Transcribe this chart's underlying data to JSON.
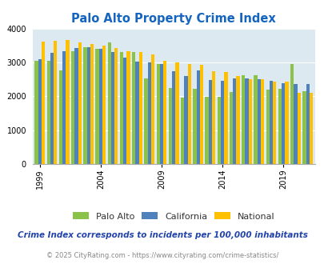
{
  "title": "Palo Alto Property Crime Index",
  "subtitle": "Crime Index corresponds to incidents per 100,000 inhabitants",
  "footer": "© 2025 CityRating.com - https://www.cityrating.com/crime-statistics/",
  "years": [
    1999,
    2000,
    2001,
    2002,
    2003,
    2004,
    2005,
    2006,
    2007,
    2008,
    2009,
    2010,
    2011,
    2012,
    2013,
    2014,
    2015,
    2016,
    2017,
    2018,
    2019,
    2020,
    2021
  ],
  "palo_alto": [
    3050,
    3050,
    2780,
    3350,
    3470,
    3420,
    3600,
    3310,
    3310,
    2540,
    2970,
    2250,
    1960,
    2220,
    1980,
    1980,
    2120,
    2640,
    2640,
    2200,
    2220,
    2970,
    2150
  ],
  "california": [
    3100,
    3300,
    3350,
    3430,
    3450,
    3420,
    3320,
    3160,
    3040,
    3000,
    2950,
    2740,
    2600,
    2760,
    2490,
    2460,
    2530,
    2530,
    2520,
    2460,
    2380,
    2370,
    2360
  ],
  "national": [
    3630,
    3660,
    3680,
    3610,
    3550,
    3510,
    3440,
    3350,
    3310,
    3250,
    3050,
    3000,
    2960,
    2940,
    2740,
    2720,
    2610,
    2510,
    2510,
    2450,
    2450,
    2100,
    2100
  ],
  "color_palo_alto": "#8BC34A",
  "color_california": "#4F81BD",
  "color_national": "#FFC000",
  "bg_color": "#DCE9F0",
  "title_color": "#1565C0",
  "subtitle_color": "#2244AA",
  "footer_color": "#888888",
  "ylim": [
    0,
    4000
  ],
  "yticks": [
    0,
    1000,
    2000,
    3000,
    4000
  ],
  "tick_years": [
    1999,
    2004,
    2009,
    2014,
    2019
  ]
}
